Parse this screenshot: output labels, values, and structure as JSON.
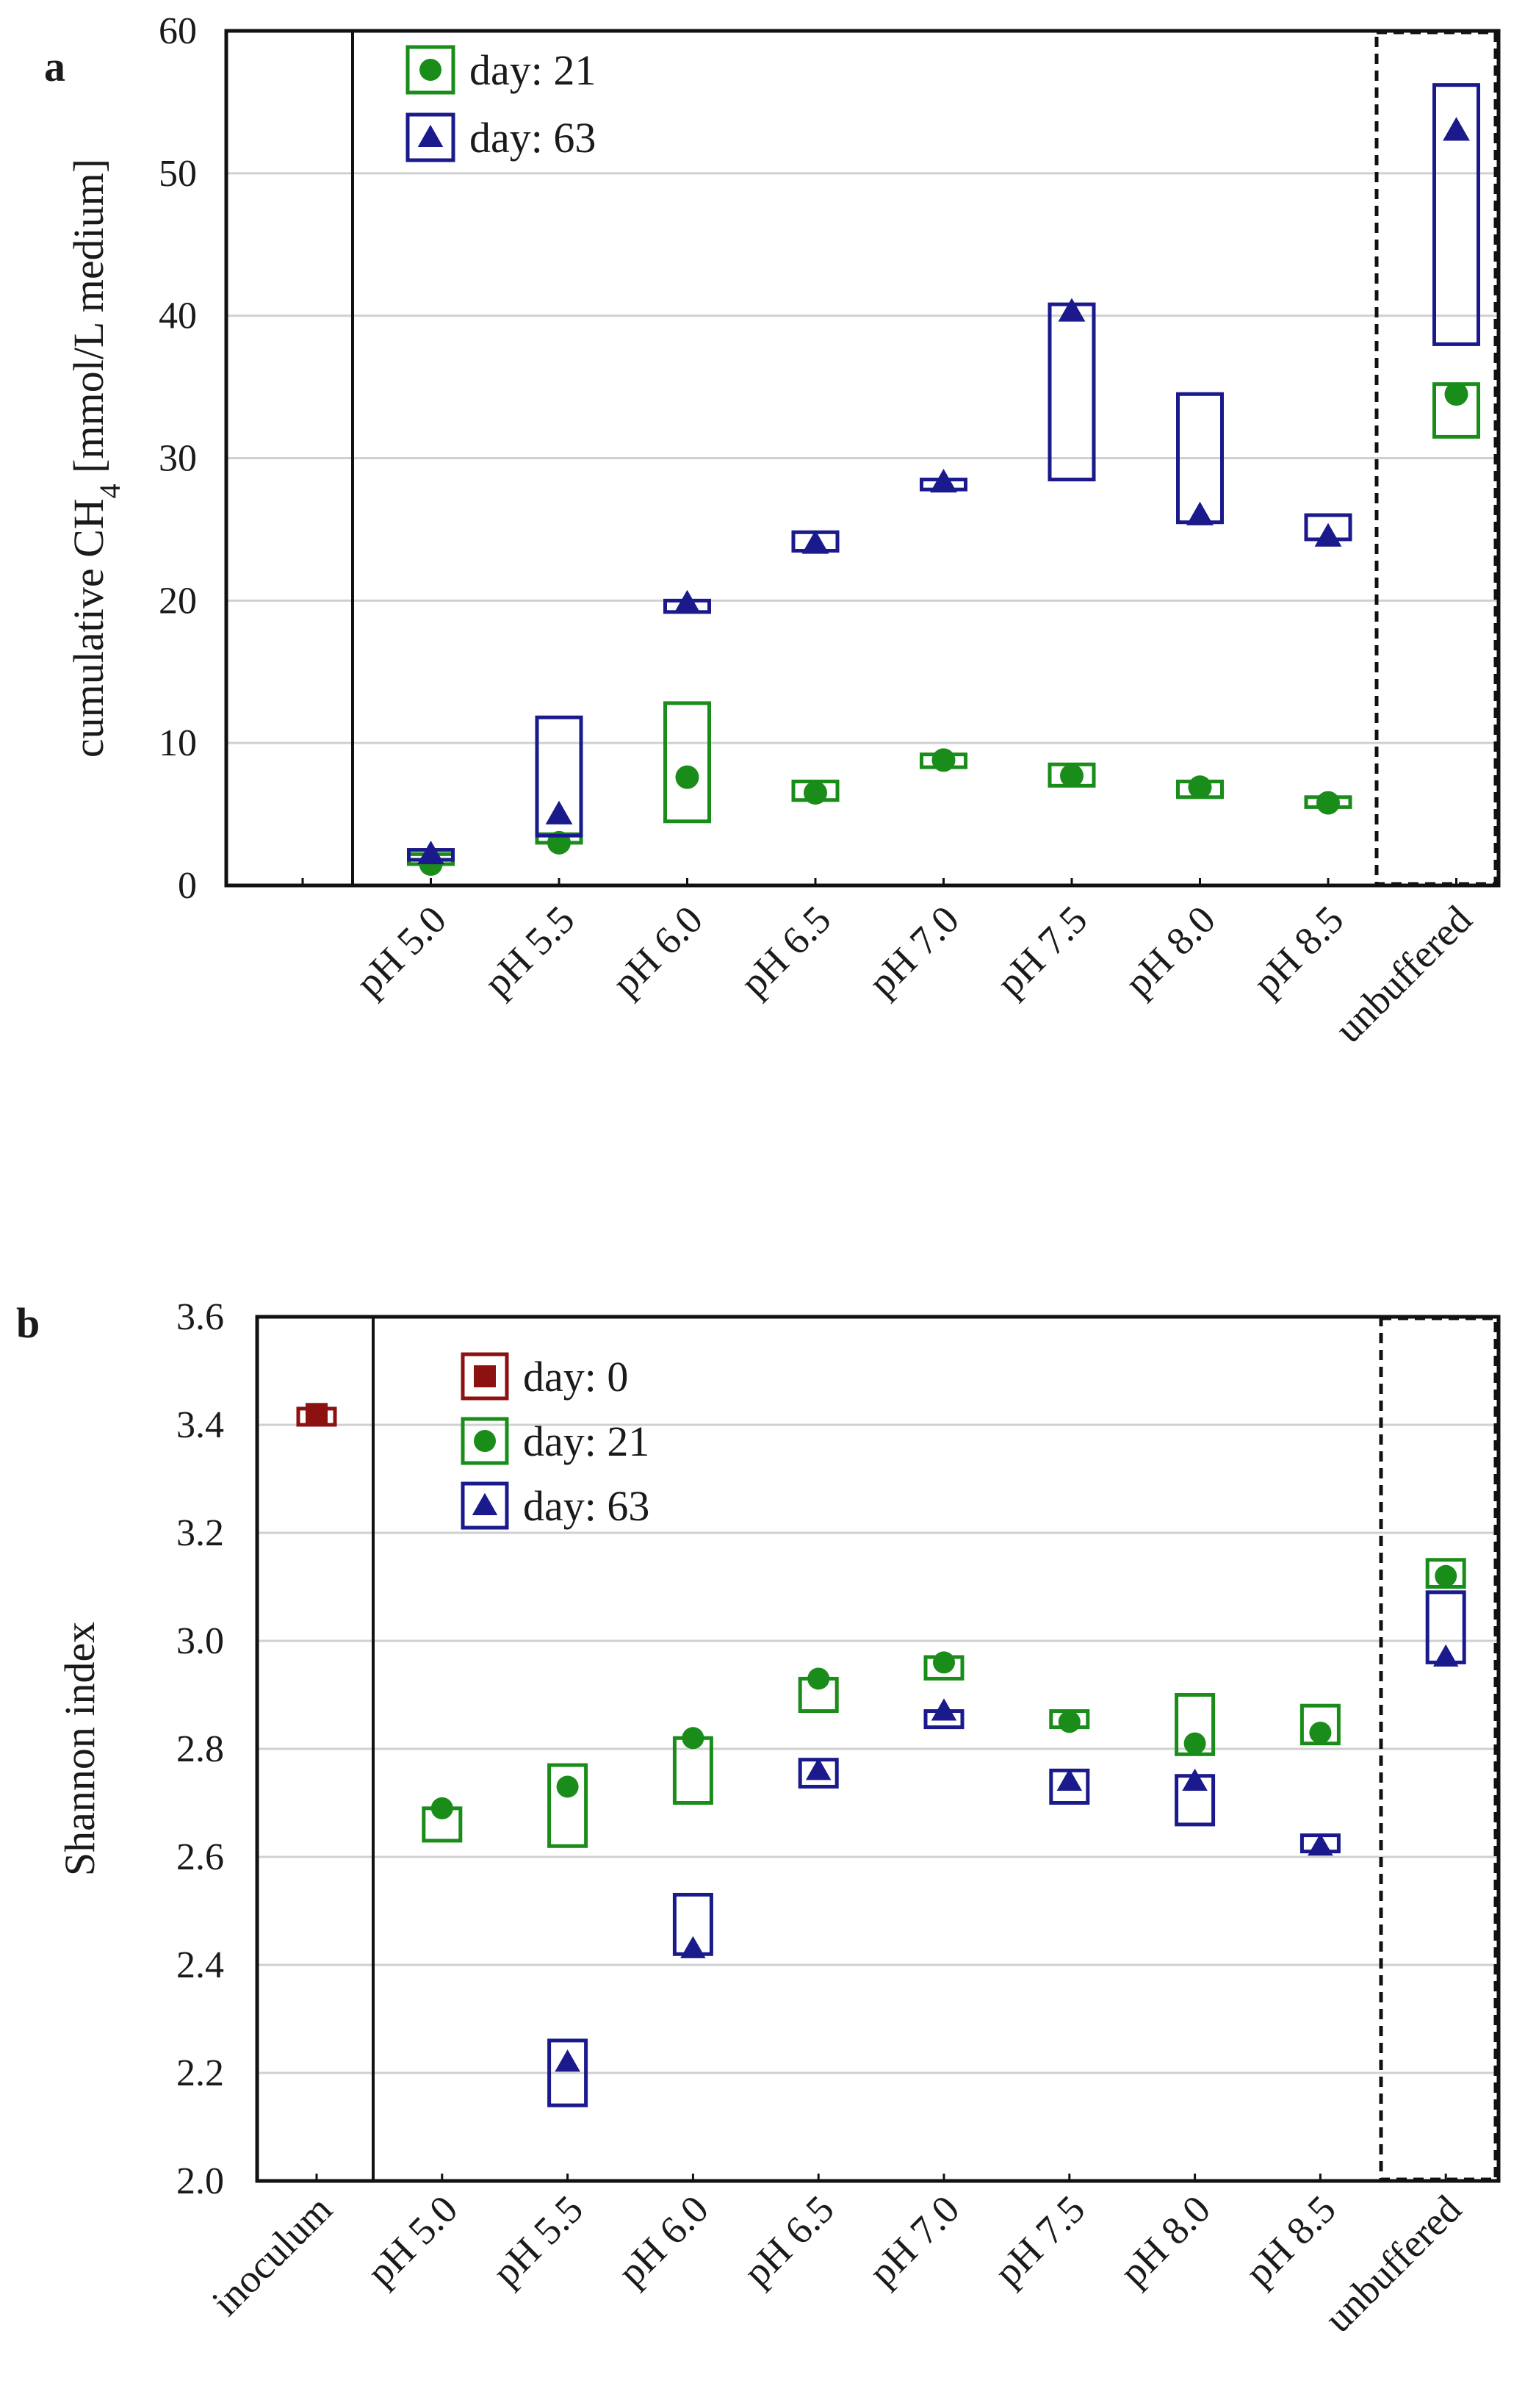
{
  "chart_data": [
    {
      "panel_label": "a",
      "type": "range-scatter",
      "ylabel_main": "cumulative CH",
      "ylabel_sub": "4",
      "ylabel_tail": " [mmol/L medium]",
      "ylim": [
        0,
        60
      ],
      "yticks": [
        0,
        10,
        20,
        30,
        40,
        50,
        60
      ],
      "ytick_labels": [
        "0",
        "10",
        "20",
        "30",
        "40",
        "50",
        "60"
      ],
      "categories": [
        "",
        "pH 5.0",
        "pH 5.5",
        "pH 6.0",
        "pH 6.5",
        "pH 7.0",
        "pH 7.5",
        "pH 8.0",
        "pH 8.5",
        "unbuffered"
      ],
      "grid": true,
      "legend_position": "top-left",
      "series": [
        {
          "name": "day: 21",
          "marker": "circle",
          "color": "#1a8c1a",
          "points": [
            {
              "category": "pH 5.0",
              "value": 1.5,
              "low": 1.5,
              "high": 2.2
            },
            {
              "category": "pH 5.5",
              "value": 3.0,
              "low": 3.0,
              "high": 3.6
            },
            {
              "category": "pH 6.0",
              "value": 7.6,
              "low": 4.5,
              "high": 12.8
            },
            {
              "category": "pH 6.5",
              "value": 6.5,
              "low": 6.0,
              "high": 7.3
            },
            {
              "category": "pH 7.0",
              "value": 8.8,
              "low": 8.3,
              "high": 9.2
            },
            {
              "category": "pH 7.5",
              "value": 7.7,
              "low": 7.0,
              "high": 8.5
            },
            {
              "category": "pH 8.0",
              "value": 6.9,
              "low": 6.2,
              "high": 7.3
            },
            {
              "category": "pH 8.5",
              "value": 5.8,
              "low": 5.5,
              "high": 6.2
            },
            {
              "category": "unbuffered",
              "value": 34.5,
              "low": 31.5,
              "high": 35.2
            }
          ]
        },
        {
          "name": "day: 63",
          "marker": "triangle",
          "color": "#1a1a8c",
          "points": [
            {
              "category": "pH 5.0",
              "value": 2.2,
              "low": 1.8,
              "high": 2.5
            },
            {
              "category": "pH 5.5",
              "value": 5.0,
              "low": 3.5,
              "high": 11.8
            },
            {
              "category": "pH 6.0",
              "value": 19.8,
              "low": 19.2,
              "high": 20.0
            },
            {
              "category": "pH 6.5",
              "value": 24.0,
              "low": 23.5,
              "high": 24.8
            },
            {
              "category": "pH 7.0",
              "value": 28.3,
              "low": 27.8,
              "high": 28.5
            },
            {
              "category": "pH 7.5",
              "value": 40.3,
              "low": 28.5,
              "high": 40.8
            },
            {
              "category": "pH 8.0",
              "value": 26.0,
              "low": 25.5,
              "high": 34.5
            },
            {
              "category": "pH 8.5",
              "value": 24.5,
              "low": 24.3,
              "high": 26.0
            },
            {
              "category": "unbuffered",
              "value": 53.0,
              "low": 38.0,
              "high": 56.2
            }
          ]
        }
      ]
    },
    {
      "panel_label": "b",
      "type": "range-scatter",
      "ylabel": "Shannon index",
      "ylim": [
        2.0,
        3.6
      ],
      "yticks": [
        2.0,
        2.2,
        2.4,
        2.6,
        2.8,
        3.0,
        3.2,
        3.4,
        3.6
      ],
      "ytick_labels": [
        "2.0",
        "2.2",
        "2.4",
        "2.6",
        "2.8",
        "3.0",
        "3.2",
        "3.4",
        "3.6"
      ],
      "categories": [
        "inoculum",
        "pH 5.0",
        "pH 5.5",
        "pH 6.0",
        "pH 6.5",
        "pH 7.0",
        "pH 7.5",
        "pH 8.0",
        "pH 8.5",
        "unbuffered"
      ],
      "grid": true,
      "legend_position": "top-left",
      "series": [
        {
          "name": "day: 0",
          "marker": "square",
          "color": "#8c1111",
          "points": [
            {
              "category": "inoculum",
              "value": 3.42,
              "low": 3.4,
              "high": 3.43
            }
          ]
        },
        {
          "name": "day: 21",
          "marker": "circle",
          "color": "#1a8c1a",
          "points": [
            {
              "category": "pH 5.0",
              "value": 2.69,
              "low": 2.63,
              "high": 2.69
            },
            {
              "category": "pH 5.5",
              "value": 2.73,
              "low": 2.62,
              "high": 2.77
            },
            {
              "category": "pH 6.0",
              "value": 2.82,
              "low": 2.7,
              "high": 2.82
            },
            {
              "category": "pH 6.5",
              "value": 2.93,
              "low": 2.87,
              "high": 2.93
            },
            {
              "category": "pH 7.0",
              "value": 2.96,
              "low": 2.93,
              "high": 2.97
            },
            {
              "category": "pH 7.5",
              "value": 2.85,
              "low": 2.84,
              "high": 2.87
            },
            {
              "category": "pH 8.0",
              "value": 2.81,
              "low": 2.79,
              "high": 2.9
            },
            {
              "category": "pH 8.5",
              "value": 2.83,
              "low": 2.81,
              "high": 2.88
            },
            {
              "category": "unbuffered",
              "value": 3.12,
              "low": 3.1,
              "high": 3.15
            }
          ]
        },
        {
          "name": "day: 63",
          "marker": "triangle",
          "color": "#1a1a8c",
          "points": [
            {
              "category": "pH 5.5",
              "value": 2.22,
              "low": 2.14,
              "high": 2.26
            },
            {
              "category": "pH 6.0",
              "value": 2.43,
              "low": 2.42,
              "high": 2.53
            },
            {
              "category": "pH 6.5",
              "value": 2.76,
              "low": 2.73,
              "high": 2.78
            },
            {
              "category": "pH 7.0",
              "value": 2.87,
              "low": 2.84,
              "high": 2.87
            },
            {
              "category": "pH 7.5",
              "value": 2.74,
              "low": 2.7,
              "high": 2.76
            },
            {
              "category": "pH 8.0",
              "value": 2.74,
              "low": 2.66,
              "high": 2.75
            },
            {
              "category": "pH 8.5",
              "value": 2.62,
              "low": 2.61,
              "high": 2.64
            },
            {
              "category": "unbuffered",
              "value": 2.97,
              "low": 2.96,
              "high": 3.09
            }
          ]
        }
      ]
    }
  ]
}
